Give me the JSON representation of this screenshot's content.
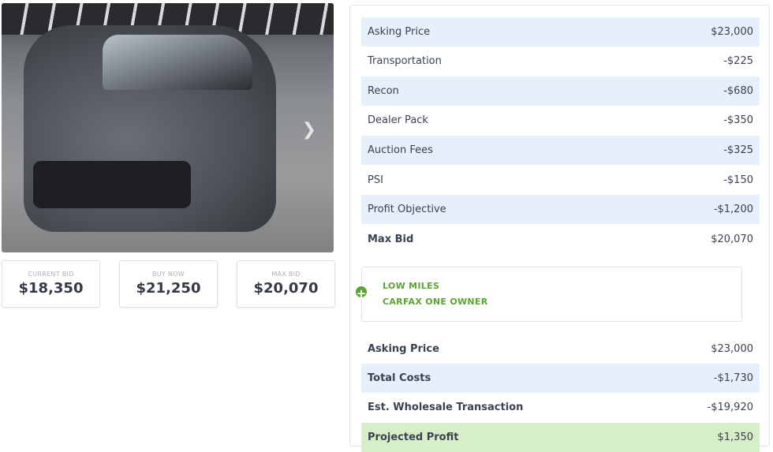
{
  "gallery": {
    "next_icon": "chevron-right-icon"
  },
  "bids": [
    {
      "label": "CURRENT BID",
      "value": "$18,350"
    },
    {
      "label": "BUY NOW",
      "value": "$21,250"
    },
    {
      "label": "MAX BID",
      "value": "$20,070"
    }
  ],
  "costs": [
    {
      "label": "Asking Price",
      "value": "$23,000"
    },
    {
      "label": "Transportation",
      "value": "-$225"
    },
    {
      "label": "Recon",
      "value": "-$680"
    },
    {
      "label": "Dealer Pack",
      "value": "-$350"
    },
    {
      "label": "Auction Fees",
      "value": "-$325"
    },
    {
      "label": "PSI",
      "value": "-$150"
    },
    {
      "label": "Profit Objective",
      "value": "-$1,200"
    },
    {
      "label": "Max Bid",
      "value": "$20,070"
    }
  ],
  "notes": {
    "icon": "plus-circle-icon",
    "items": [
      "LOW MILES",
      "CARFAX ONE OWNER"
    ],
    "color": "#5aa52f"
  },
  "summary": [
    {
      "label": "Asking Price",
      "value": "$23,000"
    },
    {
      "label": "Total Costs",
      "value": "-$1,730"
    },
    {
      "label": "Est. Wholesale Transaction",
      "value": "-$19,920"
    },
    {
      "label": "Projected Profit",
      "value": "$1,350"
    }
  ]
}
